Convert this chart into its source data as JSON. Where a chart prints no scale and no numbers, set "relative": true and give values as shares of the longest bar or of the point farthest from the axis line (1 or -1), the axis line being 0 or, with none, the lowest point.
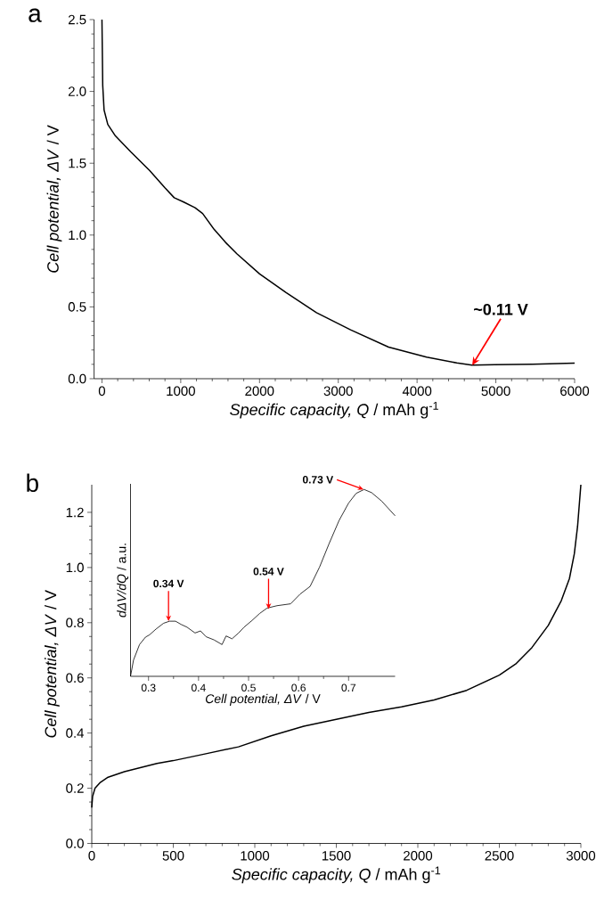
{
  "chart_data": [
    {
      "type": "line",
      "title": "a",
      "xlabel": "*Specific capacity, Q* / mAh g$^{-1}$",
      "ylabel": "*Cell potential, ΔV* / V",
      "x": [
        0,
        10,
        27,
        74,
        171,
        364,
        604,
        797,
        917,
        1038,
        1182,
        1278,
        1423,
        1567,
        1712,
        2001,
        2338,
        2723,
        3156,
        3638,
        4120,
        4504,
        4697,
        4986,
        5467,
        6000
      ],
      "values": [
        2.5,
        2.04,
        1.87,
        1.77,
        1.69,
        1.58,
        1.45,
        1.33,
        1.26,
        1.23,
        1.19,
        1.15,
        1.04,
        0.95,
        0.87,
        0.73,
        0.6,
        0.46,
        0.34,
        0.22,
        0.15,
        0.11,
        0.094,
        0.097,
        0.1,
        0.108
      ],
      "color": "#000000",
      "xlim": [
        -100,
        6000
      ],
      "xticks": [
        0,
        1000,
        2000,
        3000,
        4000,
        5000,
        6000
      ],
      "ylim": [
        0,
        2.5
      ],
      "yticks": [
        {
          "value": 0,
          "label": "0.0"
        },
        0.5,
        {
          "value": 1,
          "label": "1.0"
        },
        1.5,
        {
          "value": 2,
          "label": "2.0"
        },
        2.5
      ],
      "annotations": [
        {
          "text": "~0.11 V",
          "x": 4700,
          "y": 0.094
        }
      ]
    },
    {
      "type": "line",
      "title": "b",
      "xlabel": "*Specific capacity, Q* / mAh g$^{-1}$",
      "ylabel": "*Cell potential, ΔV* / V",
      "x": [
        0,
        5,
        20,
        50,
        100,
        200,
        300,
        400,
        500,
        700,
        900,
        1100,
        1300,
        1500,
        1700,
        1900,
        2100,
        2300,
        2500,
        2600,
        2700,
        2800,
        2880,
        2930,
        2960,
        2980,
        3000
      ],
      "values": [
        0.13,
        0.17,
        0.2,
        0.22,
        0.24,
        0.26,
        0.275,
        0.29,
        0.3,
        0.325,
        0.35,
        0.39,
        0.425,
        0.45,
        0.475,
        0.495,
        0.52,
        0.555,
        0.61,
        0.65,
        0.71,
        0.79,
        0.88,
        0.96,
        1.05,
        1.15,
        1.3
      ],
      "color": "#000000",
      "xlim": [
        0,
        3000
      ],
      "xticks": [
        0,
        500,
        1000,
        1500,
        2000,
        2500,
        3000
      ],
      "ylim": [
        0,
        1.3
      ],
      "yticks": [
        {
          "value": 0,
          "label": "0.0"
        },
        0.2,
        0.4,
        0.6,
        0.8,
        {
          "value": 1,
          "label": "1.0"
        },
        1.2
      ]
    },
    {
      "type": "line",
      "relative": true,
      "xlabel": "*Cell potential, ΔV* / V",
      "ylabel": "*dΔV/dQ* / a.u.",
      "x": [
        0.264,
        0.27,
        0.282,
        0.294,
        0.302,
        0.315,
        0.33,
        0.342,
        0.354,
        0.365,
        0.377,
        0.393,
        0.404,
        0.415,
        0.431,
        0.447,
        0.455,
        0.467,
        0.48,
        0.491,
        0.507,
        0.522,
        0.537,
        0.557,
        0.584,
        0.603,
        0.623,
        0.642,
        0.661,
        0.681,
        0.7,
        0.715,
        0.731,
        0.746,
        0.766,
        0.793
      ],
      "values": [
        0,
        0.087,
        0.17,
        0.21,
        0.222,
        0.253,
        0.284,
        0.295,
        0.295,
        0.278,
        0.263,
        0.232,
        0.243,
        0.212,
        0.195,
        0.17,
        0.216,
        0.201,
        0.232,
        0.263,
        0.299,
        0.336,
        0.365,
        0.378,
        0.388,
        0.44,
        0.481,
        0.585,
        0.71,
        0.834,
        0.927,
        0.979,
        1,
        0.983,
        0.938,
        0.859
      ],
      "color": "#000000",
      "xlim": [
        0.264,
        0.793
      ],
      "xticks": [
        0.3,
        0.4,
        0.5,
        0.6,
        0.7
      ],
      "annotations": [
        {
          "text": "0.34 V",
          "x": 0.34,
          "y": 0.295
        },
        {
          "text": "0.54 V",
          "x": 0.54,
          "y": 0.36
        },
        {
          "text": "0.73 V",
          "x": 0.73,
          "y": 1
        }
      ]
    }
  ]
}
